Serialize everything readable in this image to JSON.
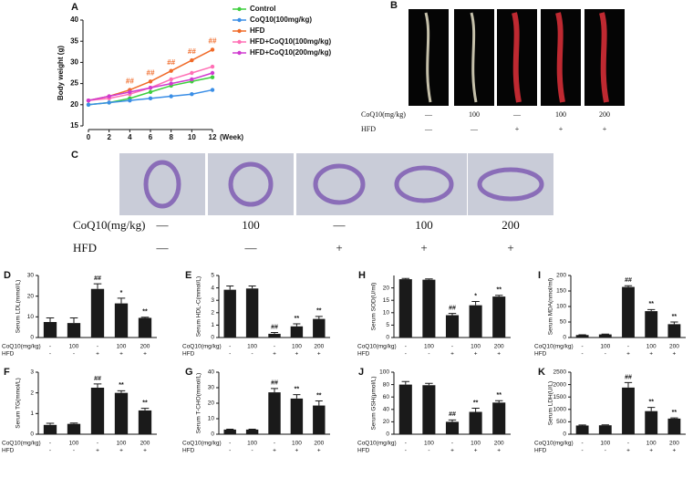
{
  "chart_data": [
    {
      "type": "line",
      "panel": "A",
      "y_label": "Body weight (g)",
      "x_label": "(Week)",
      "x": [
        0,
        2,
        4,
        6,
        8,
        10,
        12
      ],
      "xlim": [
        0,
        12
      ],
      "xticks": [
        0,
        2,
        4,
        6,
        8,
        10,
        12
      ],
      "ylim": [
        15,
        40
      ],
      "yticks": [
        15,
        20,
        25,
        30,
        35,
        40
      ],
      "series": [
        {
          "name": "Control",
          "color": "#3ecf3e",
          "values": [
            20,
            20.5,
            21.5,
            23,
            24.5,
            25.5,
            26.5
          ]
        },
        {
          "name": "CoQ10(100mg/kg)",
          "color": "#3a8ee6",
          "values": [
            20,
            20.5,
            21,
            21.5,
            22,
            22.5,
            23.5
          ]
        },
        {
          "name": "HFD",
          "color": "#f06a28",
          "values": [
            21,
            22,
            23.5,
            25.5,
            28,
            30.5,
            33
          ],
          "annotations": [
            null,
            null,
            "##",
            "##",
            "##",
            "##",
            "##"
          ]
        },
        {
          "name": "HFD+CoQ10(100mg/kg)",
          "color": "#ff6fb5",
          "values": [
            21,
            21.5,
            22.5,
            24,
            26,
            27.5,
            29
          ]
        },
        {
          "name": "HFD+CoQ10(200mg/kg)",
          "color": "#d03ad0",
          "values": [
            21,
            22,
            23,
            24,
            25,
            26,
            27.5
          ]
        }
      ]
    },
    {
      "type": "bar",
      "panel": "D",
      "y_label": "Serum LDL(mmol/L)",
      "color": "#1a1a1a",
      "ylim": [
        0,
        30
      ],
      "yticks": [
        0,
        10,
        20,
        30
      ],
      "category_row_labels": [
        "CoQ10(mg/kg)",
        "HFD"
      ],
      "categories": [
        [
          "-",
          "-"
        ],
        [
          "100",
          "-"
        ],
        [
          "-",
          "+"
        ],
        [
          "100",
          "+"
        ],
        [
          "200",
          "+"
        ]
      ],
      "values": [
        7.5,
        7,
        23.5,
        16.5,
        9.5
      ],
      "errors": [
        2,
        2.5,
        2.5,
        2.5,
        0.3
      ],
      "significance": [
        null,
        null,
        "##",
        "*",
        "**"
      ]
    },
    {
      "type": "bar",
      "panel": "E",
      "y_label": "Serum HDL-C(mmol/L)",
      "color": "#1a1a1a",
      "ylim": [
        0,
        5
      ],
      "yticks": [
        0,
        1,
        2,
        3,
        4,
        5
      ],
      "category_row_labels": [
        "CoQ10(mg/kg)",
        "HFD"
      ],
      "categories": [
        [
          "-",
          "-"
        ],
        [
          "100",
          "-"
        ],
        [
          "-",
          "+"
        ],
        [
          "100",
          "+"
        ],
        [
          "200",
          "+"
        ]
      ],
      "values": [
        3.85,
        3.95,
        0.3,
        0.9,
        1.5
      ],
      "errors": [
        0.3,
        0.2,
        0.1,
        0.2,
        0.2
      ],
      "significance": [
        null,
        null,
        "##",
        "**",
        "**"
      ]
    },
    {
      "type": "bar",
      "panel": "H",
      "y_label": "Serum SOD(U/ml)",
      "color": "#1a1a1a",
      "ylim": [
        0,
        25
      ],
      "yticks": [
        0,
        5,
        10,
        15,
        20
      ],
      "category_row_labels": [
        "CoQ10(mg/kg)",
        "HFD"
      ],
      "categories": [
        [
          "-",
          "-"
        ],
        [
          "100",
          "-"
        ],
        [
          "-",
          "+"
        ],
        [
          "100",
          "+"
        ],
        [
          "200",
          "+"
        ]
      ],
      "values": [
        23.5,
        23.3,
        9,
        13,
        16.5
      ],
      "errors": [
        0.3,
        0.3,
        0.7,
        1.5,
        0.5
      ],
      "significance": [
        null,
        null,
        "##",
        "*",
        "**"
      ]
    },
    {
      "type": "bar",
      "panel": "I",
      "y_label": "Serum MDA(nmol/ml)",
      "color": "#1a1a1a",
      "ylim": [
        0,
        200
      ],
      "yticks": [
        0,
        50,
        100,
        150,
        200
      ],
      "category_row_labels": [
        "CoQ10(mg/kg)",
        "HFD"
      ],
      "categories": [
        [
          "-",
          "-"
        ],
        [
          "100",
          "-"
        ],
        [
          "-",
          "+"
        ],
        [
          "100",
          "+"
        ],
        [
          "200",
          "+"
        ]
      ],
      "values": [
        8,
        10,
        163,
        85,
        43
      ],
      "errors": [
        1,
        1,
        4,
        5,
        7
      ],
      "significance": [
        null,
        null,
        "##",
        "**",
        "**"
      ]
    },
    {
      "type": "bar",
      "panel": "F",
      "y_label": "Serum TG(mmol/L)",
      "color": "#1a1a1a",
      "ylim": [
        0,
        3
      ],
      "yticks": [
        0,
        1,
        2,
        3
      ],
      "category_row_labels": [
        "CoQ10(mg/kg)",
        "HFD"
      ],
      "categories": [
        [
          "-",
          "-"
        ],
        [
          "100",
          "-"
        ],
        [
          "-",
          "+"
        ],
        [
          "100",
          "+"
        ],
        [
          "200",
          "+"
        ]
      ],
      "values": [
        0.45,
        0.5,
        2.25,
        2.0,
        1.15
      ],
      "errors": [
        0.08,
        0.04,
        0.18,
        0.1,
        0.1
      ],
      "significance": [
        null,
        null,
        "##",
        "**",
        "**"
      ]
    },
    {
      "type": "bar",
      "panel": "G",
      "y_label": "Serum T-CHO(mmol/L)",
      "color": "#1a1a1a",
      "ylim": [
        0,
        40
      ],
      "yticks": [
        0,
        10,
        20,
        30,
        40
      ],
      "category_row_labels": [
        "CoQ10(mg/kg)",
        "HFD"
      ],
      "categories": [
        [
          "-",
          "-"
        ],
        [
          "100",
          "-"
        ],
        [
          "-",
          "+"
        ],
        [
          "100",
          "+"
        ],
        [
          "200",
          "+"
        ]
      ],
      "values": [
        3,
        3,
        27,
        23,
        18.5
      ],
      "errors": [
        0.2,
        0.2,
        2.5,
        2.5,
        3
      ],
      "significance": [
        null,
        null,
        "##",
        "**",
        "**"
      ]
    },
    {
      "type": "bar",
      "panel": "J",
      "y_label": "Serum GSH(μmol/L)",
      "color": "#1a1a1a",
      "ylim": [
        0,
        100
      ],
      "yticks": [
        0,
        20,
        40,
        60,
        80,
        100
      ],
      "category_row_labels": [
        "CoQ10(mg/kg)",
        "HFD"
      ],
      "categories": [
        [
          "-",
          "-"
        ],
        [
          "100",
          "-"
        ],
        [
          "-",
          "+"
        ],
        [
          "100",
          "+"
        ],
        [
          "200",
          "+"
        ]
      ],
      "values": [
        80,
        79,
        20,
        36,
        51
      ],
      "errors": [
        5,
        3,
        3,
        6,
        3
      ],
      "significance": [
        null,
        null,
        "##",
        "**",
        "**"
      ]
    },
    {
      "type": "bar",
      "panel": "K",
      "y_label": "Serum LDH(U/L)",
      "color": "#1a1a1a",
      "ylim": [
        0,
        2500
      ],
      "yticks": [
        0,
        500,
        1000,
        1500,
        2000,
        2500
      ],
      "category_row_labels": [
        "CoQ10(mg/kg)",
        "HFD"
      ],
      "categories": [
        [
          "-",
          "-"
        ],
        [
          "100",
          "-"
        ],
        [
          "-",
          "+"
        ],
        [
          "100",
          "+"
        ],
        [
          "200",
          "+"
        ]
      ],
      "values": [
        350,
        360,
        1880,
        930,
        630
      ],
      "errors": [
        20,
        15,
        200,
        150,
        25
      ],
      "significance": [
        null,
        null,
        "##",
        "**",
        "**"
      ]
    }
  ],
  "image_panels": [
    {
      "panel": "B",
      "row_labels": [
        "CoQ10(mg/kg)",
        "HFD"
      ],
      "columns": [
        [
          "—",
          "—"
        ],
        [
          "100",
          "—"
        ],
        [
          "—",
          "+"
        ],
        [
          "100",
          "+"
        ],
        [
          "200",
          "+"
        ]
      ]
    },
    {
      "panel": "C",
      "row_labels": [
        "CoQ10(mg/kg)",
        "HFD"
      ],
      "columns": [
        [
          "—",
          "—"
        ],
        [
          "100",
          "—"
        ],
        [
          "—",
          "+"
        ],
        [
          "100",
          "+"
        ],
        [
          "200",
          "+"
        ]
      ]
    }
  ]
}
